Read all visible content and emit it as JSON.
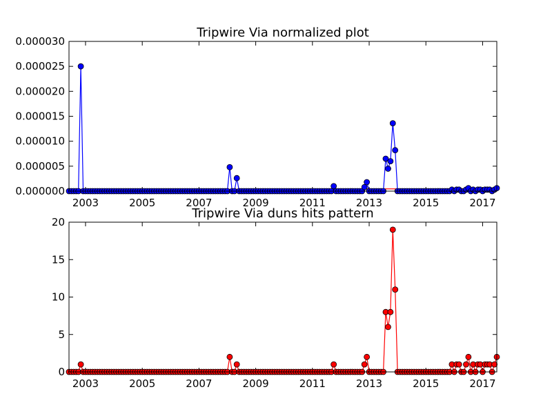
{
  "colors": {
    "background": "#ffffff",
    "axes": "#000000",
    "top_series": "#0000ff",
    "bottom_series": "#ff0000",
    "reference_line": "#ff0000"
  },
  "chart_data": [
    {
      "type": "line",
      "title": "Tripwire Via normalized plot",
      "xlabel": "",
      "ylabel": "",
      "xlim": [
        2002.417,
        2017.5
      ],
      "ylim": [
        0,
        3e-05
      ],
      "grid": false,
      "x_ticks": [
        2003,
        2005,
        2007,
        2009,
        2011,
        2013,
        2015,
        2017
      ],
      "x_tick_labels": [
        "2003",
        "2005",
        "2007",
        "2009",
        "2011",
        "2013",
        "2015",
        "2017"
      ],
      "y_ticks": [
        0,
        5e-06,
        1e-05,
        1.5e-05,
        2e-05,
        2.5e-05,
        3e-05
      ],
      "y_tick_labels": [
        "0.000000",
        "0.000005",
        "0.000010",
        "0.000015",
        "0.000020",
        "0.000025",
        "0.000030"
      ],
      "marker": "circle",
      "reference_line": {
        "from": [
          2002.417,
          3e-07
        ],
        "to": [
          2017.5,
          5e-07
        ]
      },
      "series": [
        {
          "x": [
            2002.417,
            2002.5,
            2002.583,
            2002.667,
            2002.75,
            2002.833,
            2002.917,
            2003.0,
            2003.083,
            2003.167,
            2003.25,
            2003.333,
            2003.417,
            2003.5,
            2003.583,
            2003.667,
            2003.75,
            2003.833,
            2003.917,
            2004.0,
            2004.083,
            2004.167,
            2004.25,
            2004.333,
            2004.417,
            2004.5,
            2004.583,
            2004.667,
            2004.75,
            2004.833,
            2004.917,
            2005.0,
            2005.083,
            2005.167,
            2005.25,
            2005.333,
            2005.417,
            2005.5,
            2005.583,
            2005.667,
            2005.75,
            2005.833,
            2005.917,
            2006.0,
            2006.083,
            2006.167,
            2006.25,
            2006.333,
            2006.417,
            2006.5,
            2006.583,
            2006.667,
            2006.75,
            2006.833,
            2006.917,
            2007.0,
            2007.083,
            2007.167,
            2007.25,
            2007.333,
            2007.417,
            2007.5,
            2007.583,
            2007.667,
            2007.75,
            2007.833,
            2007.917,
            2008.0,
            2008.083,
            2008.167,
            2008.25,
            2008.333,
            2008.417,
            2008.5,
            2008.583,
            2008.667,
            2008.75,
            2008.833,
            2008.917,
            2009.0,
            2009.083,
            2009.167,
            2009.25,
            2009.333,
            2009.417,
            2009.5,
            2009.583,
            2009.667,
            2009.75,
            2009.833,
            2009.917,
            2010.0,
            2010.083,
            2010.167,
            2010.25,
            2010.333,
            2010.417,
            2010.5,
            2010.583,
            2010.667,
            2010.75,
            2010.833,
            2010.917,
            2011.0,
            2011.083,
            2011.167,
            2011.25,
            2011.333,
            2011.417,
            2011.5,
            2011.583,
            2011.667,
            2011.75,
            2011.833,
            2011.917,
            2012.0,
            2012.083,
            2012.167,
            2012.25,
            2012.333,
            2012.417,
            2012.5,
            2012.583,
            2012.667,
            2012.75,
            2012.833,
            2012.917,
            2013.0,
            2013.083,
            2013.167,
            2013.25,
            2013.333,
            2013.417,
            2013.5,
            2013.583,
            2013.667,
            2013.75,
            2013.833,
            2013.917,
            2014.0,
            2014.083,
            2014.167,
            2014.25,
            2014.333,
            2014.417,
            2014.5,
            2014.583,
            2014.667,
            2014.75,
            2014.833,
            2014.917,
            2015.0,
            2015.083,
            2015.167,
            2015.25,
            2015.333,
            2015.417,
            2015.5,
            2015.583,
            2015.667,
            2015.75,
            2015.833,
            2015.917,
            2016.0,
            2016.083,
            2016.167,
            2016.25,
            2016.333,
            2016.417,
            2016.5,
            2016.583,
            2016.667,
            2016.75,
            2016.833,
            2016.917,
            2017.0,
            2017.083,
            2017.167,
            2017.25,
            2017.333,
            2017.417,
            2017.5
          ],
          "values": [
            0,
            0,
            0,
            0,
            0,
            2.5e-05,
            0,
            0,
            0,
            0,
            0,
            0,
            0,
            0,
            0,
            0,
            0,
            0,
            0,
            0,
            0,
            0,
            0,
            0,
            0,
            0,
            0,
            0,
            0,
            0,
            0,
            0,
            0,
            0,
            0,
            0,
            0,
            0,
            0,
            0,
            0,
            0,
            0,
            0,
            0,
            0,
            0,
            0,
            0,
            0,
            0,
            0,
            0,
            0,
            0,
            0,
            0,
            0,
            0,
            0,
            0,
            0,
            0,
            0,
            0,
            0,
            0,
            0,
            4.8e-06,
            0,
            0,
            2.6e-06,
            0,
            0,
            0,
            0,
            0,
            0,
            0,
            0,
            0,
            0,
            0,
            0,
            0,
            0,
            0,
            0,
            0,
            0,
            0,
            0,
            0,
            0,
            0,
            0,
            0,
            0,
            0,
            0,
            0,
            0,
            0,
            0,
            0,
            0,
            0,
            0,
            0,
            0,
            0,
            0,
            1e-06,
            0,
            0,
            0,
            0,
            0,
            0,
            0,
            0,
            0,
            0,
            0,
            0,
            8e-07,
            1.8e-06,
            0,
            0,
            0,
            0,
            0,
            0,
            0,
            6.5e-06,
            4.5e-06,
            6e-06,
            1.36e-05,
            8.2e-06,
            0,
            0,
            0,
            0,
            0,
            0,
            0,
            0,
            0,
            0,
            0,
            0,
            0,
            0,
            0,
            0,
            0,
            0,
            0,
            0,
            0,
            0,
            0,
            3e-07,
            0,
            3e-07,
            3e-07,
            0,
            0,
            3e-07,
            6e-07,
            0,
            3e-07,
            0,
            3e-07,
            3e-07,
            0,
            3e-07,
            3e-07,
            3e-07,
            0,
            3e-07,
            6e-07
          ]
        }
      ]
    },
    {
      "type": "line",
      "title": "Tripwire Via duns hits pattern",
      "xlabel": "",
      "ylabel": "",
      "xlim": [
        2002.417,
        2017.5
      ],
      "ylim": [
        0,
        20
      ],
      "grid": false,
      "x_ticks": [
        2003,
        2005,
        2007,
        2009,
        2011,
        2013,
        2015,
        2017
      ],
      "x_tick_labels": [
        "2003",
        "2005",
        "2007",
        "2009",
        "2011",
        "2013",
        "2015",
        "2017"
      ],
      "y_ticks": [
        0,
        5,
        10,
        15,
        20
      ],
      "y_tick_labels": [
        "0",
        "5",
        "10",
        "15",
        "20"
      ],
      "marker": "circle",
      "series": [
        {
          "x": [
            2002.417,
            2002.5,
            2002.583,
            2002.667,
            2002.75,
            2002.833,
            2002.917,
            2003.0,
            2003.083,
            2003.167,
            2003.25,
            2003.333,
            2003.417,
            2003.5,
            2003.583,
            2003.667,
            2003.75,
            2003.833,
            2003.917,
            2004.0,
            2004.083,
            2004.167,
            2004.25,
            2004.333,
            2004.417,
            2004.5,
            2004.583,
            2004.667,
            2004.75,
            2004.833,
            2004.917,
            2005.0,
            2005.083,
            2005.167,
            2005.25,
            2005.333,
            2005.417,
            2005.5,
            2005.583,
            2005.667,
            2005.75,
            2005.833,
            2005.917,
            2006.0,
            2006.083,
            2006.167,
            2006.25,
            2006.333,
            2006.417,
            2006.5,
            2006.583,
            2006.667,
            2006.75,
            2006.833,
            2006.917,
            2007.0,
            2007.083,
            2007.167,
            2007.25,
            2007.333,
            2007.417,
            2007.5,
            2007.583,
            2007.667,
            2007.75,
            2007.833,
            2007.917,
            2008.0,
            2008.083,
            2008.167,
            2008.25,
            2008.333,
            2008.417,
            2008.5,
            2008.583,
            2008.667,
            2008.75,
            2008.833,
            2008.917,
            2009.0,
            2009.083,
            2009.167,
            2009.25,
            2009.333,
            2009.417,
            2009.5,
            2009.583,
            2009.667,
            2009.75,
            2009.833,
            2009.917,
            2010.0,
            2010.083,
            2010.167,
            2010.25,
            2010.333,
            2010.417,
            2010.5,
            2010.583,
            2010.667,
            2010.75,
            2010.833,
            2010.917,
            2011.0,
            2011.083,
            2011.167,
            2011.25,
            2011.333,
            2011.417,
            2011.5,
            2011.583,
            2011.667,
            2011.75,
            2011.833,
            2011.917,
            2012.0,
            2012.083,
            2012.167,
            2012.25,
            2012.333,
            2012.417,
            2012.5,
            2012.583,
            2012.667,
            2012.75,
            2012.833,
            2012.917,
            2013.0,
            2013.083,
            2013.167,
            2013.25,
            2013.333,
            2013.417,
            2013.5,
            2013.583,
            2013.667,
            2013.75,
            2013.833,
            2013.917,
            2014.0,
            2014.083,
            2014.167,
            2014.25,
            2014.333,
            2014.417,
            2014.5,
            2014.583,
            2014.667,
            2014.75,
            2014.833,
            2014.917,
            2015.0,
            2015.083,
            2015.167,
            2015.25,
            2015.333,
            2015.417,
            2015.5,
            2015.583,
            2015.667,
            2015.75,
            2015.833,
            2015.917,
            2016.0,
            2016.083,
            2016.167,
            2016.25,
            2016.333,
            2016.417,
            2016.5,
            2016.583,
            2016.667,
            2016.75,
            2016.833,
            2016.917,
            2017.0,
            2017.083,
            2017.167,
            2017.25,
            2017.333,
            2017.417,
            2017.5
          ],
          "values": [
            0,
            0,
            0,
            0,
            0,
            1,
            0,
            0,
            0,
            0,
            0,
            0,
            0,
            0,
            0,
            0,
            0,
            0,
            0,
            0,
            0,
            0,
            0,
            0,
            0,
            0,
            0,
            0,
            0,
            0,
            0,
            0,
            0,
            0,
            0,
            0,
            0,
            0,
            0,
            0,
            0,
            0,
            0,
            0,
            0,
            0,
            0,
            0,
            0,
            0,
            0,
            0,
            0,
            0,
            0,
            0,
            0,
            0,
            0,
            0,
            0,
            0,
            0,
            0,
            0,
            0,
            0,
            0,
            2,
            0,
            0,
            1,
            0,
            0,
            0,
            0,
            0,
            0,
            0,
            0,
            0,
            0,
            0,
            0,
            0,
            0,
            0,
            0,
            0,
            0,
            0,
            0,
            0,
            0,
            0,
            0,
            0,
            0,
            0,
            0,
            0,
            0,
            0,
            0,
            0,
            0,
            0,
            0,
            0,
            0,
            0,
            0,
            1,
            0,
            0,
            0,
            0,
            0,
            0,
            0,
            0,
            0,
            0,
            0,
            0,
            1,
            2,
            0,
            0,
            0,
            0,
            0,
            0,
            0,
            8,
            6,
            8,
            19,
            11,
            0,
            0,
            0,
            0,
            0,
            0,
            0,
            0,
            0,
            0,
            0,
            0,
            0,
            0,
            0,
            0,
            0,
            0,
            0,
            0,
            0,
            0,
            0,
            1,
            0,
            1,
            1,
            0,
            0,
            1,
            2,
            0,
            1,
            0,
            1,
            1,
            0,
            1,
            1,
            1,
            0,
            1,
            2
          ]
        }
      ]
    }
  ]
}
